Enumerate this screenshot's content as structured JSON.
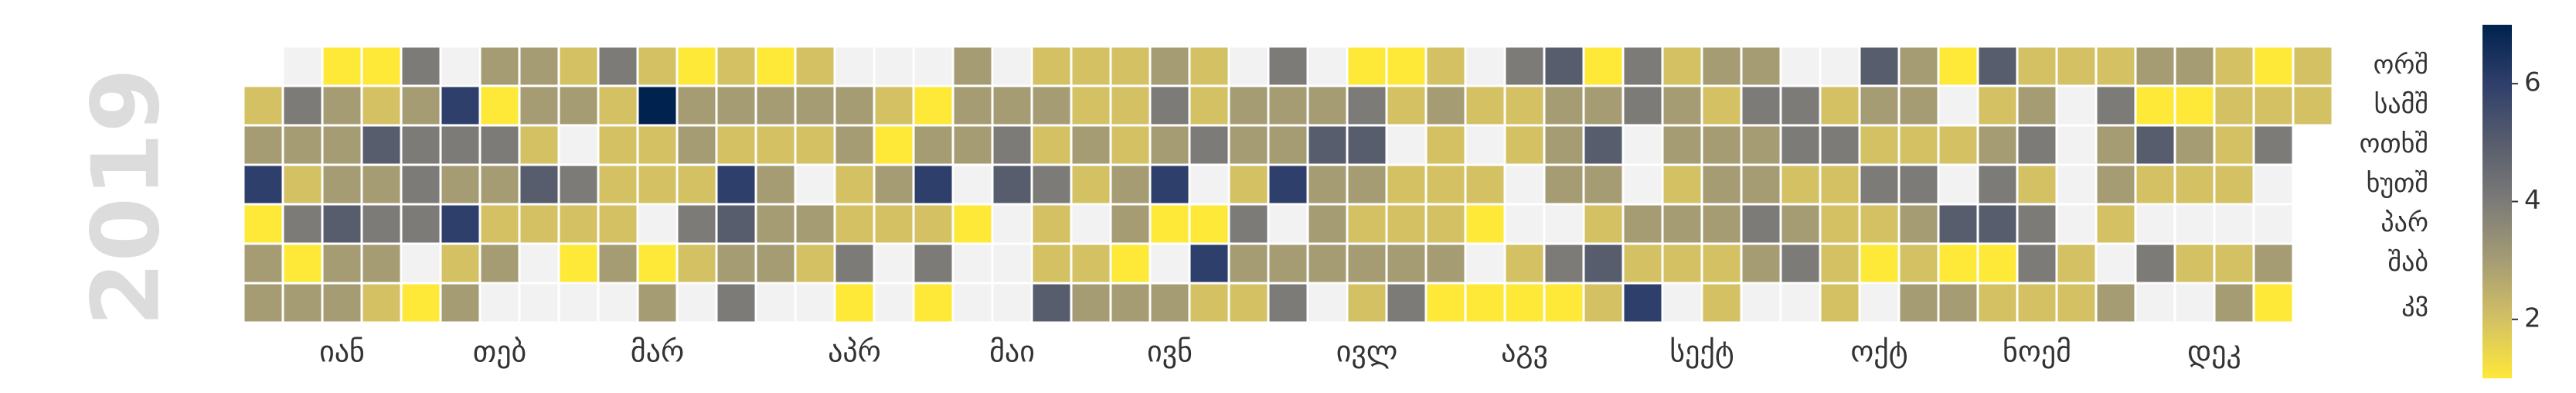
{
  "chart_data": {
    "type": "calendar-heatmap",
    "title": "2019",
    "row_labels": [
      "ორშ",
      "სამშ",
      "ოთხშ",
      "ხუთშ",
      "პარ",
      "შაბ",
      "კვ"
    ],
    "month_labels": [
      "იან",
      "თებ",
      "მარ",
      "აპრ",
      "მაი",
      "ივნ",
      "ივლ",
      "აგვ",
      "სექტ",
      "ოქტ",
      "ნოემ",
      "დეკ"
    ],
    "values": [
      2,
      3,
      6,
      1,
      3,
      3,
      null,
      4,
      3,
      2,
      4,
      1,
      3,
      1,
      3,
      3,
      3,
      5,
      3,
      3,
      1,
      2,
      5,
      3,
      4,
      3,
      2,
      4,
      3,
      4,
      4,
      4,
      null,
      1,
      null,
      6,
      4,
      3,
      6,
      2,
      3,
      3,
      1,
      4,
      3,
      2,
      3,
      null,
      3,
      3,
      2,
      5,
      2,
      null,
      null,
      2,
      3,
      null,
      4,
      2,
      1,
      null,
      4,
      2,
      2,
      2,
      2,
      3,
      null,
      2,
      7,
      2,
      2,
      null,
      1,
      3,
      1,
      3,
      3,
      2,
      4,
      2,
      null,
      2,
      3,
      2,
      6,
      5,
      3,
      4,
      1,
      3,
      2,
      3,
      3,
      3,
      null,
      2,
      3,
      2,
      null,
      3,
      2,
      null,
      null,
      3,
      3,
      2,
      2,
      4,
      1,
      null,
      2,
      1,
      3,
      2,
      null,
      null,
      null,
      1,
      3,
      6,
      2,
      4,
      1,
      3,
      3,
      3,
      null,
      1,
      null,
      null,
      null,
      3,
      4,
      5,
      null,
      null,
      null,
      2,
      3,
      2,
      4,
      2,
      2,
      5,
      2,
      2,
      3,
      2,
      null,
      2,
      3,
      2,
      2,
      2,
      3,
      3,
      1,
      3,
      3,
      4,
      3,
      6,
      1,
      null,
      3,
      2,
      2,
      4,
      null,
      1,
      6,
      2,
      null,
      3,
      3,
      2,
      4,
      3,
      2,
      4,
      3,
      3,
      6,
      null,
      3,
      4,
      null,
      3,
      5,
      3,
      3,
      3,
      null,
      1,
      4,
      5,
      3,
      2,
      3,
      2,
      1,
      2,
      null,
      2,
      2,
      3,
      4,
      2,
      3,
      2,
      2,
      2,
      3,
      1,
      null,
      2,
      null,
      2,
      1,
      null,
      1,
      4,
      2,
      2,
      null,
      null,
      2,
      1,
      5,
      3,
      3,
      3,
      null,
      4,
      1,
      1,
      3,
      5,
      3,
      2,
      5,
      2,
      4,
      4,
      null,
      null,
      3,
      2,
      6,
      2,
      3,
      3,
      2,
      3,
      2,
      null,
      3,
      2,
      3,
      3,
      3,
      2,
      2,
      3,
      4,
      3,
      3,
      4,
      3,
      null,
      null,
      4,
      4,
      2,
      3,
      4,
      null,
      null,
      2,
      4,
      2,
      2,
      2,
      2,
      5,
      3,
      2,
      4,
      2,
      1,
      null,
      3,
      3,
      2,
      4,
      3,
      2,
      3,
      1,
      null,
      2,
      null,
      5,
      1,
      3,
      5,
      2,
      3,
      4,
      5,
      1,
      2,
      2,
      3,
      4,
      2,
      4,
      4,
      2,
      2,
      null,
      null,
      null,
      null,
      2,
      2,
      2,
      4,
      3,
      3,
      2,
      null,
      3,
      3,
      1,
      5,
      2,
      null,
      4,
      null,
      3,
      1,
      3,
      2,
      null,
      2,
      null,
      2,
      2,
      2,
      2,
      null,
      2,
      3,
      1,
      2,
      4,
      null,
      null,
      3,
      1,
      2,
      2
    ],
    "colors": [
      "#fee838",
      "#d3c164",
      "#a59c74",
      "#7c7b78",
      "#575d6d",
      "#2f3f6b",
      "#00224e"
    ],
    "clim": [
      1,
      7
    ],
    "colorbar_ticks": [
      2,
      4,
      6
    ],
    "empty_color": "#f2f2f2"
  }
}
